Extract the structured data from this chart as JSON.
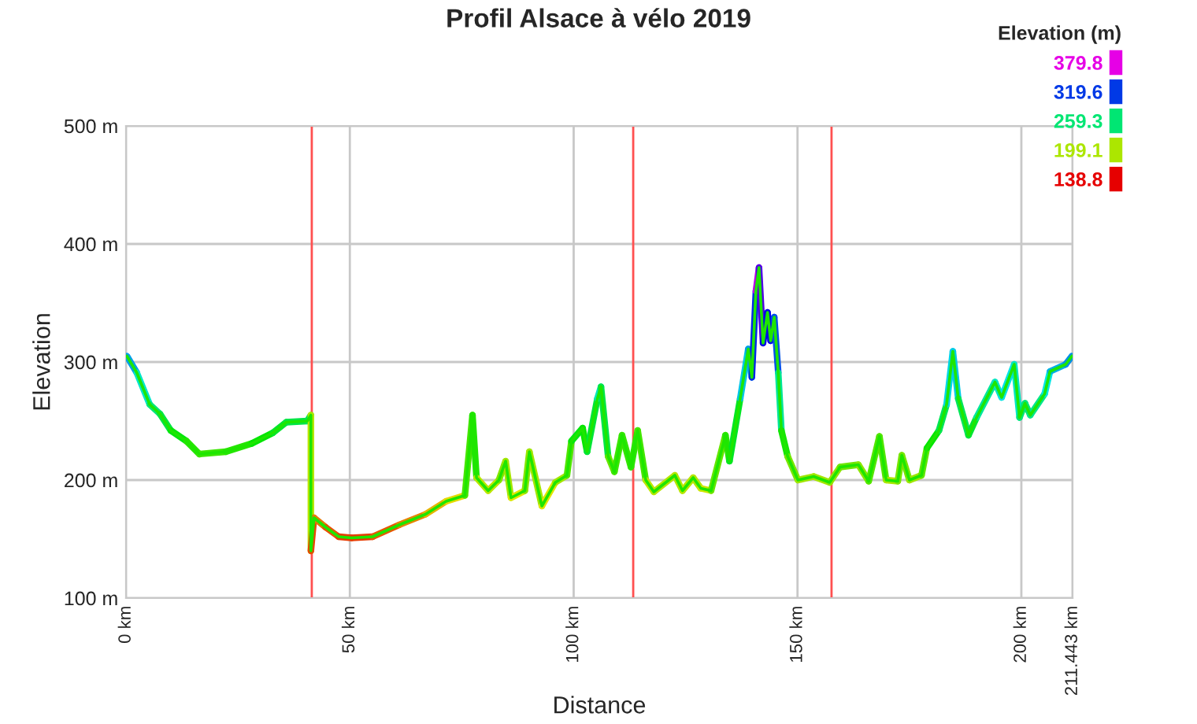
{
  "chart_data": {
    "type": "line",
    "title": "Profil Alsace à vélo 2019",
    "xlabel": "Distance",
    "ylabel": "Elevation",
    "clabel": "Elevation (m)",
    "cticks": [
      379.8,
      319.6,
      259.3,
      199.1,
      138.8
    ],
    "xlim": [
      0,
      211.443
    ],
    "ylim": [
      100,
      500
    ],
    "xticks": [
      {
        "value": 0,
        "label": "0 km"
      },
      {
        "value": 50,
        "label": "50 km"
      },
      {
        "value": 100,
        "label": "100 km"
      },
      {
        "value": 150,
        "label": "150 km"
      },
      {
        "value": 200,
        "label": "200 km"
      },
      {
        "value": 211.443,
        "label": "211.443 km"
      }
    ],
    "yticks": [
      {
        "value": 100,
        "label": "100 m"
      },
      {
        "value": 200,
        "label": "200 m"
      },
      {
        "value": 300,
        "label": "300 m"
      },
      {
        "value": 400,
        "label": "400 m"
      },
      {
        "value": 500,
        "label": "500 m"
      }
    ],
    "grid": true,
    "ref_lines": [
      {
        "axis": "x",
        "value": 41.5,
        "color": "#ff5050"
      },
      {
        "axis": "x",
        "value": 113.3,
        "color": "#ff5050"
      },
      {
        "axis": "x",
        "value": 157.6,
        "color": "#ff5050"
      }
    ],
    "series": [
      {
        "x": [
          0.2,
          2.4,
          5.3,
          7.6,
          10,
          13.5,
          16.4,
          22.3,
          28.1,
          32.8,
          35.8,
          40.5,
          41.3,
          41.3,
          42,
          44.6,
          47.5,
          50.4,
          55.1,
          61,
          66.9,
          71.5,
          75.7,
          77.4,
          78.3,
          80.9,
          83.3,
          84.8,
          86,
          89.1,
          90.1,
          92.9,
          95.9,
          98.5,
          99.5,
          102,
          103,
          105.3,
          106.1,
          107.7,
          109.1,
          110.8,
          112.8,
          114.3,
          116.1,
          117.9,
          122.6,
          124.3,
          126.7,
          128.4,
          130.7,
          133.9,
          134.8,
          137.2,
          139,
          139.8,
          140.7,
          141.4,
          142.3,
          143.3,
          144,
          144.8,
          145.7,
          146.4,
          147.8,
          150.1,
          153.6,
          157.2,
          159.5,
          163.6,
          165.9,
          168.3,
          169.8,
          172.4,
          173.3,
          175,
          177.7,
          178.9,
          181.6,
          183.3,
          184.7,
          185.9,
          188.2,
          190,
          194.1,
          195.6,
          198.4,
          199.6,
          200.8,
          202,
          205.2,
          206.4,
          209.9,
          211.3
        ],
        "values": [
          305,
          291,
          264,
          256,
          242,
          233,
          222,
          224,
          231,
          240,
          249,
          250,
          255,
          140,
          168,
          160,
          152,
          151,
          152,
          162,
          171,
          182,
          187,
          255,
          202,
          191,
          200,
          216,
          185,
          191,
          224,
          178,
          198,
          204,
          233,
          244,
          224,
          269,
          279,
          220,
          207,
          238,
          211,
          242,
          200,
          190,
          204,
          191,
          202,
          193,
          191,
          238,
          216,
          269,
          311,
          287,
          360,
          380,
          316,
          342,
          318,
          338,
          291,
          242,
          220,
          200,
          203,
          198,
          211,
          213,
          199,
          237,
          200,
          199,
          221,
          200,
          204,
          227,
          242,
          264,
          309,
          269,
          238,
          253,
          283,
          270,
          298,
          253,
          265,
          255,
          273,
          292,
          298,
          305
        ]
      }
    ]
  }
}
